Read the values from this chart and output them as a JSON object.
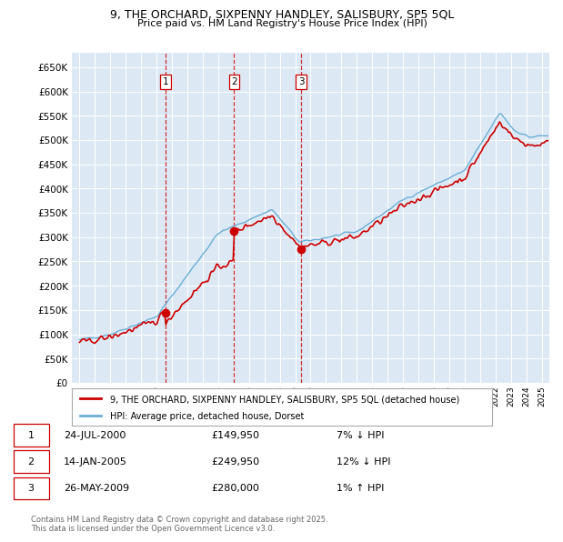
{
  "title": "9, THE ORCHARD, SIXPENNY HANDLEY, SALISBURY, SP5 5QL",
  "subtitle": "Price paid vs. HM Land Registry's House Price Index (HPI)",
  "legend_property": "9, THE ORCHARD, SIXPENNY HANDLEY, SALISBURY, SP5 5QL (detached house)",
  "legend_hpi": "HPI: Average price, detached house, Dorset",
  "footer": "Contains HM Land Registry data © Crown copyright and database right 2025.\nThis data is licensed under the Open Government Licence v3.0.",
  "sales": [
    {
      "num": 1,
      "date": "24-JUL-2000",
      "price": 149950,
      "pct": "7%",
      "dir": "↓",
      "year_x": 2000.56
    },
    {
      "num": 2,
      "date": "14-JAN-2005",
      "price": 249950,
      "pct": "12%",
      "dir": "↓",
      "year_x": 2005.04
    },
    {
      "num": 3,
      "date": "26-MAY-2009",
      "price": 280000,
      "pct": "1%",
      "dir": "↑",
      "year_x": 2009.4
    }
  ],
  "hpi_color": "#6baed6",
  "price_color": "#cc0000",
  "sale_marker_color": "#cc0000",
  "bg_color": "#dce9f5",
  "grid_color": "#ffffff",
  "ylim": [
    0,
    680000
  ],
  "xlim_start": 1994.5,
  "xlim_end": 2025.5
}
